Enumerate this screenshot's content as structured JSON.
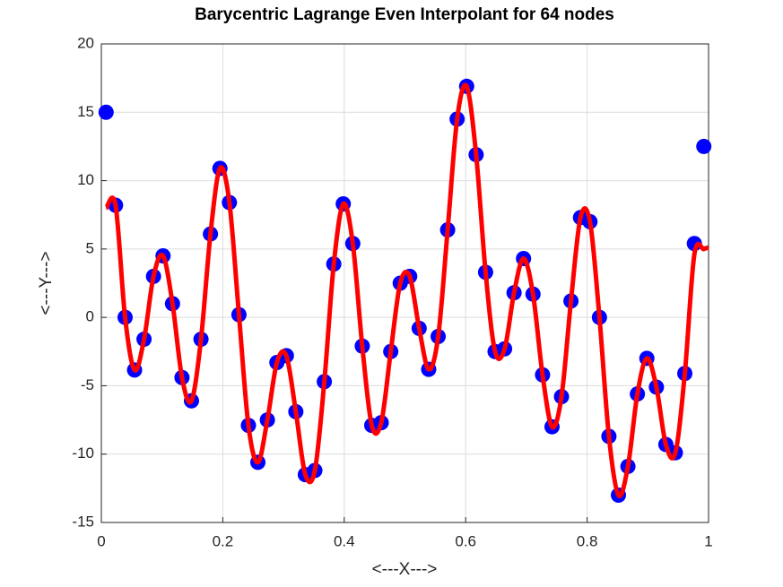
{
  "chart_data": {
    "type": "scatter",
    "title": "Barycentric Lagrange Even Interpolant for 64 nodes",
    "xlabel": "<---X--->",
    "ylabel": "<---Y--->",
    "xlim": [
      0,
      1
    ],
    "ylim": [
      -15,
      20
    ],
    "xticks": [
      0,
      0.2,
      0.4,
      0.6,
      0.8,
      1
    ],
    "yticks": [
      -15,
      -10,
      -5,
      0,
      5,
      10,
      15,
      20
    ],
    "grid": true,
    "series": [
      {
        "mode": "markers",
        "color": "#0000ff",
        "x": [
          0.0078,
          0.0234,
          0.0391,
          0.0547,
          0.0703,
          0.0859,
          0.1016,
          0.1172,
          0.1328,
          0.1484,
          0.1641,
          0.1797,
          0.1953,
          0.2109,
          0.2266,
          0.2422,
          0.2578,
          0.2734,
          0.2891,
          0.3047,
          0.3203,
          0.3359,
          0.3516,
          0.3672,
          0.3828,
          0.3984,
          0.4141,
          0.4297,
          0.4453,
          0.4609,
          0.4766,
          0.4922,
          0.5078,
          0.5234,
          0.5391,
          0.5547,
          0.5703,
          0.5859,
          0.6016,
          0.6172,
          0.6328,
          0.6484,
          0.6641,
          0.6797,
          0.6953,
          0.7109,
          0.7266,
          0.7422,
          0.7578,
          0.7734,
          0.7891,
          0.8047,
          0.8203,
          0.8359,
          0.8516,
          0.8672,
          0.8828,
          0.8984,
          0.9141,
          0.9297,
          0.9453,
          0.9609,
          0.9766,
          0.9922
        ],
        "values": [
          15,
          8.2,
          0,
          -3.85,
          -1.6,
          3,
          4.5,
          1,
          -4.4,
          -6.1,
          -1.6,
          6.1,
          10.9,
          8.4,
          0.2,
          -7.9,
          -10.6,
          -7.5,
          -3.3,
          -2.8,
          -6.9,
          -11.5,
          -11.2,
          -4.7,
          3.9,
          8.3,
          5.4,
          -2.1,
          -7.9,
          -7.7,
          -2.5,
          2.5,
          3,
          -0.8,
          -3.8,
          -1.4,
          6.4,
          14.5,
          16.9,
          11.9,
          3.3,
          -2.5,
          -2.3,
          1.8,
          4.3,
          1.7,
          -4.2,
          -8,
          -5.8,
          1.2,
          7.3,
          7,
          0,
          -8.7,
          -13,
          -10.9,
          -5.6,
          -3,
          -5.1,
          -9.3,
          -9.9,
          -4.1,
          5.4,
          12.5
        ]
      },
      {
        "mode": "line",
        "color": "#ff0000",
        "x": [
          0.0078,
          0.0234,
          0.0391,
          0.0547,
          0.0703,
          0.0859,
          0.1016,
          0.1172,
          0.1328,
          0.1484,
          0.1641,
          0.1797,
          0.1953,
          0.2109,
          0.2266,
          0.2422,
          0.2578,
          0.2734,
          0.2891,
          0.3047,
          0.3203,
          0.3359,
          0.3516,
          0.3672,
          0.3828,
          0.3984,
          0.4141,
          0.4297,
          0.4453,
          0.4609,
          0.4766,
          0.4922,
          0.5078,
          0.5234,
          0.5391,
          0.5547,
          0.5703,
          0.5859,
          0.6016,
          0.6172,
          0.6328,
          0.6484,
          0.6641,
          0.6797,
          0.6953,
          0.7109,
          0.7266,
          0.7422,
          0.7578,
          0.7734,
          0.7891,
          0.8047,
          0.8203,
          0.8359,
          0.8516,
          0.8672,
          0.8828,
          0.8984,
          0.9141,
          0.9297,
          0.9453,
          0.9609,
          0.9766,
          0.9922,
          1
        ],
        "values": [
          8,
          8.2,
          0,
          -3.85,
          -1.6,
          3,
          4.5,
          1,
          -4.4,
          -6.1,
          -1.6,
          6.1,
          10.9,
          8.4,
          0.2,
          -7.9,
          -10.6,
          -7.5,
          -3.3,
          -2.8,
          -6.9,
          -11.5,
          -11.2,
          -4.7,
          3.9,
          8.3,
          5.4,
          -2.1,
          -7.9,
          -7.7,
          -2.5,
          2.5,
          3,
          -0.8,
          -3.8,
          -1.4,
          6.4,
          14.5,
          16.9,
          11.9,
          3.3,
          -2.5,
          -2.3,
          1.8,
          4.3,
          1.7,
          -4.2,
          -8,
          -5.8,
          1.2,
          7.3,
          7,
          0,
          -8.7,
          -13,
          -10.9,
          -5.6,
          -3,
          -5.1,
          -9.3,
          -9.9,
          -4.1,
          4.6,
          5,
          5.1
        ]
      }
    ]
  }
}
